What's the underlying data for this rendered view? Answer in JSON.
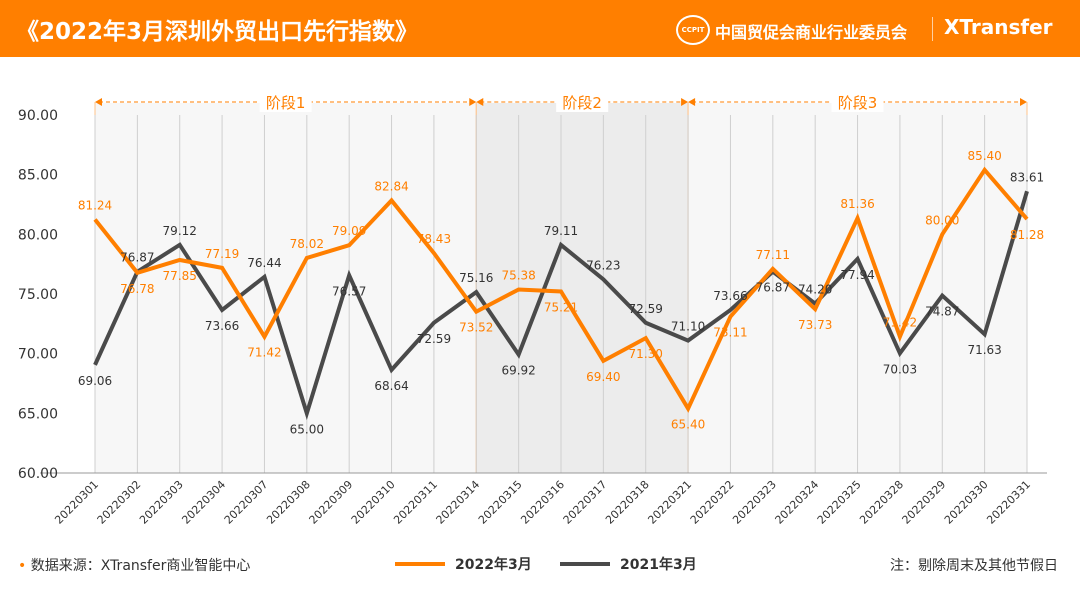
{
  "header": {
    "title": "《2022年3月深圳外贸出口先行指数》",
    "org": "中国贸促会商业行业委员会",
    "brand": "XTransfer",
    "seal_text": "CCPIT"
  },
  "footer": {
    "source": "数据来源：XTransfer商业智能中心",
    "note": "注：剔除周末及其他节假日"
  },
  "colors": {
    "header": "#ff7f00",
    "series_2022": "#ff7f00",
    "series_2021": "#4a4a4a"
  },
  "chart_data": {
    "type": "line",
    "categories": [
      "20220301",
      "20220302",
      "20220303",
      "20220304",
      "20220307",
      "20220308",
      "20220309",
      "20220310",
      "20220311",
      "20220314",
      "20220315",
      "20220316",
      "20220317",
      "20220318",
      "20220321",
      "20220322",
      "20220323",
      "20220324",
      "20220325",
      "20220328",
      "20220329",
      "20220330",
      "20220331"
    ],
    "series": [
      {
        "name": "2022年3月",
        "color": "#ff7f00",
        "values": [
          81.24,
          76.78,
          77.85,
          77.19,
          71.42,
          78.02,
          79.09,
          82.84,
          78.43,
          73.52,
          75.38,
          75.21,
          69.4,
          71.3,
          65.4,
          73.11,
          77.11,
          73.73,
          81.36,
          71.42,
          80.0,
          85.4,
          81.28
        ]
      },
      {
        "name": "2021年3月",
        "color": "#4a4a4a",
        "values": [
          69.06,
          76.87,
          79.12,
          73.66,
          76.44,
          65.0,
          76.57,
          68.64,
          72.59,
          75.16,
          69.92,
          79.11,
          76.23,
          72.59,
          71.1,
          73.66,
          76.87,
          74.2,
          77.94,
          70.03,
          74.87,
          71.63,
          83.61
        ]
      }
    ],
    "ylim": [
      60,
      90
    ],
    "yticks": [
      "60.00",
      "65.00",
      "70.00",
      "75.00",
      "80.00",
      "85.00",
      "90.00"
    ],
    "phases": [
      {
        "label": "阶段1",
        "from": "20220301",
        "to": "20220314"
      },
      {
        "label": "阶段2",
        "from": "20220314",
        "to": "20220321"
      },
      {
        "label": "阶段3",
        "from": "20220321",
        "to": "20220331"
      }
    ],
    "legend_placement": "bottom",
    "grid": "vertical"
  }
}
